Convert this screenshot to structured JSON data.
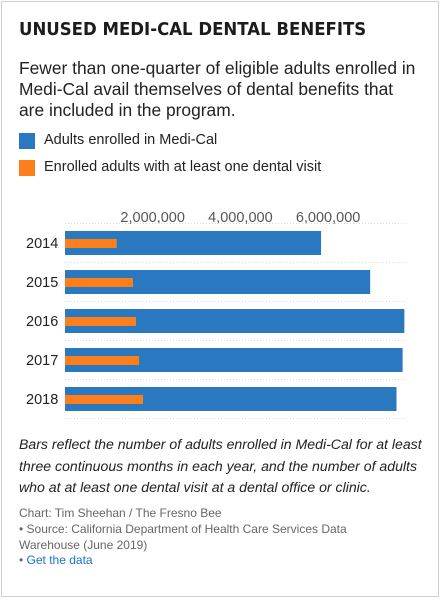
{
  "title": "UNUSED MEDI-CAL DENTAL BENEFITS",
  "subtitle": "Fewer than one-quarter of eligible adults enrolled in Medi-Cal avail themselves of dental benefits that are included in the program.",
  "legend": [
    {
      "label": "Adults enrolled in Medi-Cal",
      "color": "#2a78bf"
    },
    {
      "label": "Enrolled adults with at least one dental visit",
      "color": "#fc7f1c"
    }
  ],
  "note": "Bars reflect the number of adults enrolled in Medi-Cal for at least three continuous months in each year, and the number of adults who at at least one dental visit at a dental office or clinic.",
  "credits": {
    "chart_by": "Chart: Tim Sheehan / The Fresno Bee",
    "source_line1": "• Source: California Department of Health Care Services Data",
    "source_line2": "Warehouse (June 2019)",
    "get_data_bullet": "•",
    "get_data_label": "Get the data"
  },
  "chart_data": {
    "type": "bar",
    "orientation": "horizontal",
    "categories": [
      "2014",
      "2015",
      "2016",
      "2017",
      "2018"
    ],
    "series": [
      {
        "name": "Adults enrolled in Medi-Cal",
        "color": "#2a78bf",
        "values": [
          5840000,
          6960000,
          7740000,
          7700000,
          7560000
        ]
      },
      {
        "name": "Enrolled adults with at least one dental visit",
        "color": "#fc7f1c",
        "values": [
          1180000,
          1550000,
          1620000,
          1690000,
          1780000
        ]
      }
    ],
    "xticks": [
      2000000,
      4000000,
      6000000
    ],
    "xtick_labels": [
      "2,000,000",
      "4,000,000",
      "6,000,000"
    ],
    "xlim": [
      0,
      7800000
    ],
    "grid": true,
    "legend_position": "top-left"
  }
}
